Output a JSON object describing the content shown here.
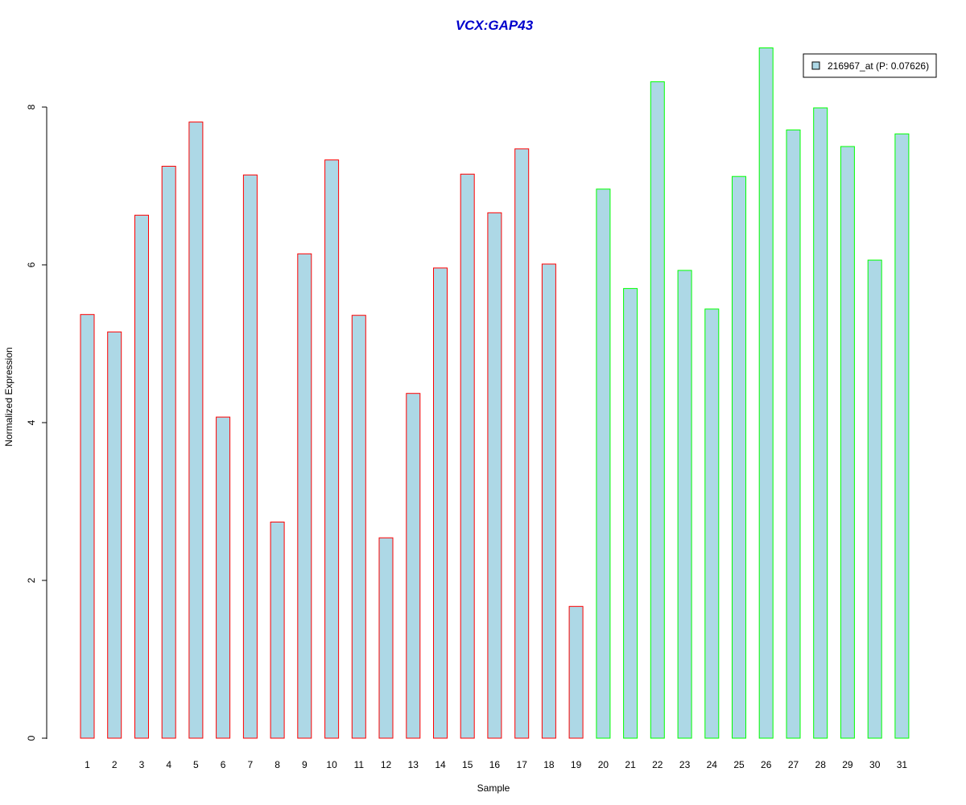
{
  "chart_data": {
    "type": "bar",
    "title": "VCX:GAP43",
    "xlabel": "Sample",
    "ylabel": "Normalized Expression",
    "categories": [
      "1",
      "2",
      "3",
      "4",
      "5",
      "6",
      "7",
      "8",
      "9",
      "10",
      "11",
      "12",
      "13",
      "14",
      "15",
      "16",
      "17",
      "18",
      "19",
      "20",
      "21",
      "22",
      "23",
      "24",
      "25",
      "26",
      "27",
      "28",
      "29",
      "30",
      "31"
    ],
    "series": [
      {
        "name": "216967_at (P: 0.07626)",
        "values": [
          5.37,
          5.15,
          6.63,
          7.25,
          7.81,
          4.07,
          7.14,
          2.74,
          6.14,
          7.33,
          5.36,
          2.54,
          4.37,
          5.96,
          7.15,
          6.66,
          7.47,
          6.01,
          1.67,
          6.96,
          5.7,
          8.32,
          5.93,
          5.44,
          7.12,
          8.75,
          7.71,
          7.99,
          7.5,
          6.06,
          7.66
        ]
      }
    ],
    "group_border_colors": [
      "#ff0000",
      "#ff0000",
      "#ff0000",
      "#ff0000",
      "#ff0000",
      "#ff0000",
      "#ff0000",
      "#ff0000",
      "#ff0000",
      "#ff0000",
      "#ff0000",
      "#ff0000",
      "#ff0000",
      "#ff0000",
      "#ff0000",
      "#ff0000",
      "#ff0000",
      "#ff0000",
      "#ff0000",
      "#00ff00",
      "#00ff00",
      "#00ff00",
      "#00ff00",
      "#00ff00",
      "#00ff00",
      "#00ff00",
      "#00ff00",
      "#00ff00",
      "#00ff00",
      "#00ff00",
      "#00ff00"
    ],
    "bar_fill_color": "#add8e6",
    "title_color": "#0000cc",
    "yticks": [
      0,
      2,
      4,
      6,
      8
    ],
    "ylim": [
      0,
      8.9
    ],
    "grid": false,
    "legend_position": "top-right"
  }
}
